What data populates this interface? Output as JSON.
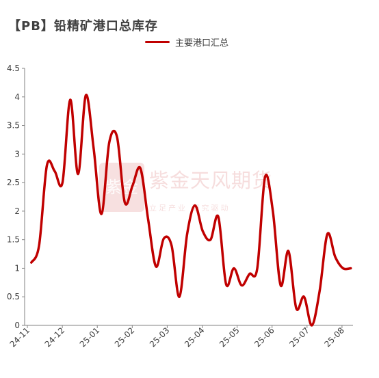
{
  "chart_data": {
    "type": "line",
    "title": "【PB】铅精矿港口总库存",
    "xlabel": "",
    "ylabel": "",
    "ylim": [
      0,
      4.5
    ],
    "yticks": [
      "0",
      "0.5",
      "1",
      "1.5",
      "2",
      "2.5",
      "3",
      "3.5",
      "4",
      "4.5"
    ],
    "xticks": [
      "24-11",
      "24-12",
      "25-01",
      "25-02",
      "25-03",
      "25-04",
      "25-05",
      "25-06",
      "25-07",
      "25-08"
    ],
    "grid": false,
    "legend_position": "top-center",
    "series": [
      {
        "name": "主要港口汇总",
        "color": "#c00000",
        "x": [
          "2024-11-01",
          "2024-11-08",
          "2024-11-15",
          "2024-11-22",
          "2024-11-29",
          "2024-12-06",
          "2024-12-13",
          "2024-12-20",
          "2024-12-27",
          "2025-01-03",
          "2025-01-10",
          "2025-01-17",
          "2025-01-24",
          "2025-01-31",
          "2025-02-07",
          "2025-02-14",
          "2025-02-21",
          "2025-02-28",
          "2025-03-07",
          "2025-03-14",
          "2025-03-21",
          "2025-03-28",
          "2025-04-04",
          "2025-04-11",
          "2025-04-18",
          "2025-04-25",
          "2025-05-02",
          "2025-05-09",
          "2025-05-16",
          "2025-05-23",
          "2025-05-30",
          "2025-06-06",
          "2025-06-13",
          "2025-06-20",
          "2025-06-27",
          "2025-07-04",
          "2025-07-11",
          "2025-07-18",
          "2025-07-25",
          "2025-08-01",
          "2025-08-08",
          "2025-08-15"
        ],
        "values": [
          1.1,
          1.4,
          2.8,
          2.7,
          2.5,
          3.95,
          2.65,
          4.03,
          3.1,
          1.95,
          3.2,
          3.3,
          2.15,
          2.45,
          2.75,
          1.85,
          1.03,
          1.52,
          1.4,
          0.5,
          1.6,
          2.1,
          1.65,
          1.5,
          1.9,
          0.72,
          1.0,
          0.7,
          0.9,
          1.0,
          2.6,
          2.0,
          0.7,
          1.3,
          0.3,
          0.5,
          0.0,
          0.6,
          1.6,
          1.2,
          1.0,
          1.0
        ]
      }
    ],
    "watermark": {
      "logo_text": "紫金",
      "main": "紫金天风期货",
      "sub": "立足产业 研究驱动"
    }
  }
}
